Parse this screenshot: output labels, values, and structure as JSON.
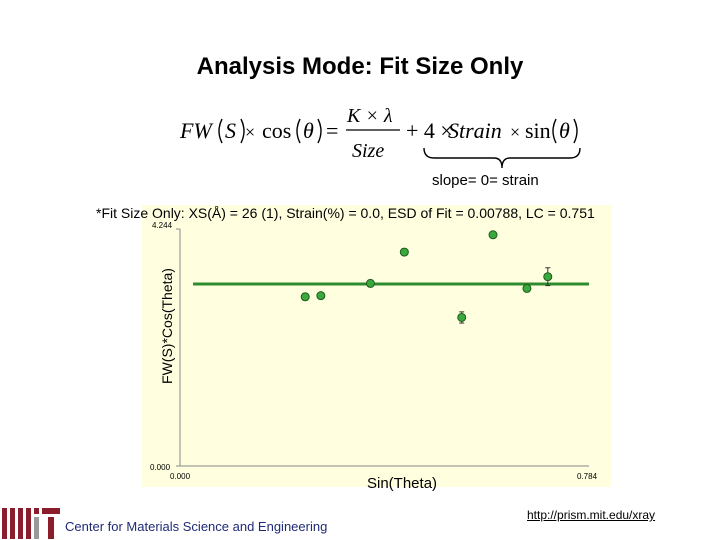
{
  "slide": {
    "title": "Analysis Mode: Fit Size Only",
    "slope_note": "slope= 0= strain",
    "fit_caption": "*Fit Size Only: XS(Å) = 26 (1), Strain(%) = 0.0, ESD of Fit = 0.00788, LC = 0.751",
    "footer_center": "Center for Materials Science and Engineering",
    "footer_url": "http://prism.mit.edu/xray"
  },
  "formula": {
    "fw": "FW",
    "s": "S",
    "times1": "×",
    "cos": "cos",
    "theta1": "θ",
    "equals": "=",
    "k_lambda": "K × λ",
    "size": "Size",
    "plus4": "+ 4 ×",
    "strain": "Strain",
    "times2": "×",
    "sin": "sin",
    "theta2": "θ"
  },
  "chart_data": {
    "type": "scatter",
    "title": "",
    "xlabel": "Sin(Theta)",
    "ylabel": "FW(S)*Cos(Theta)",
    "xlim": [
      0.0,
      0.784
    ],
    "ylim": [
      0.0,
      4.244
    ],
    "x_tick_labels": [
      "0.000",
      "0.784"
    ],
    "y_tick_labels": [
      "0.000",
      "4.244"
    ],
    "grid": false,
    "colors": {
      "marker": "#3aa83a",
      "fit_line": "#2e8b2e",
      "plot_background": "#ffffe0"
    },
    "points": [
      {
        "x": 0.24,
        "y": 3.03,
        "err": 0.06
      },
      {
        "x": 0.27,
        "y": 3.05,
        "err": 0.05
      },
      {
        "x": 0.365,
        "y": 3.27,
        "err": 0.06
      },
      {
        "x": 0.43,
        "y": 3.83,
        "err": 0.06
      },
      {
        "x": 0.54,
        "y": 2.66,
        "err": 0.1
      },
      {
        "x": 0.6,
        "y": 4.14,
        "err": 0.05
      },
      {
        "x": 0.665,
        "y": 3.18,
        "err": 0.06
      },
      {
        "x": 0.705,
        "y": 3.39,
        "err": 0.16
      }
    ],
    "fit": {
      "slope": 0.0,
      "intercept": 3.26,
      "x_range": [
        0.025,
        0.784
      ]
    }
  }
}
